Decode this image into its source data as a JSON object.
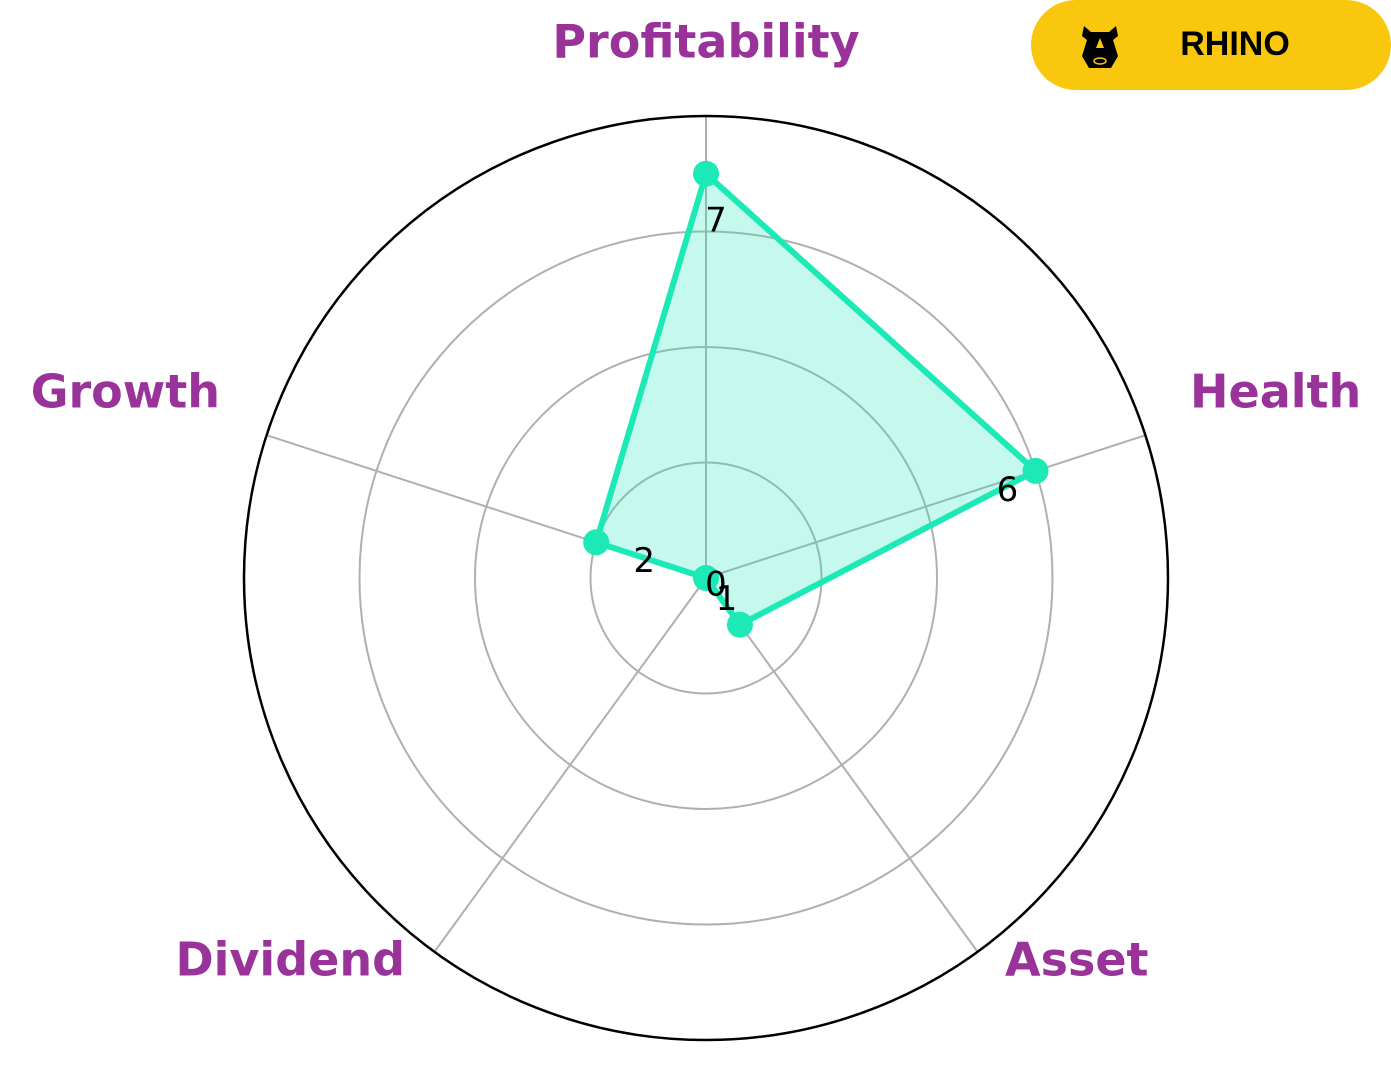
{
  "logo_text": "RHINO",
  "chart_data": {
    "type": "radar",
    "categories": [
      "Profitability",
      "Health",
      "Asset",
      "Dividend",
      "Growth"
    ],
    "values": [
      7,
      6,
      1,
      0,
      2
    ],
    "color": "#1de9b6",
    "ylim": [
      0,
      8
    ],
    "yticks": [
      2,
      4,
      6
    ],
    "grid": true
  }
}
